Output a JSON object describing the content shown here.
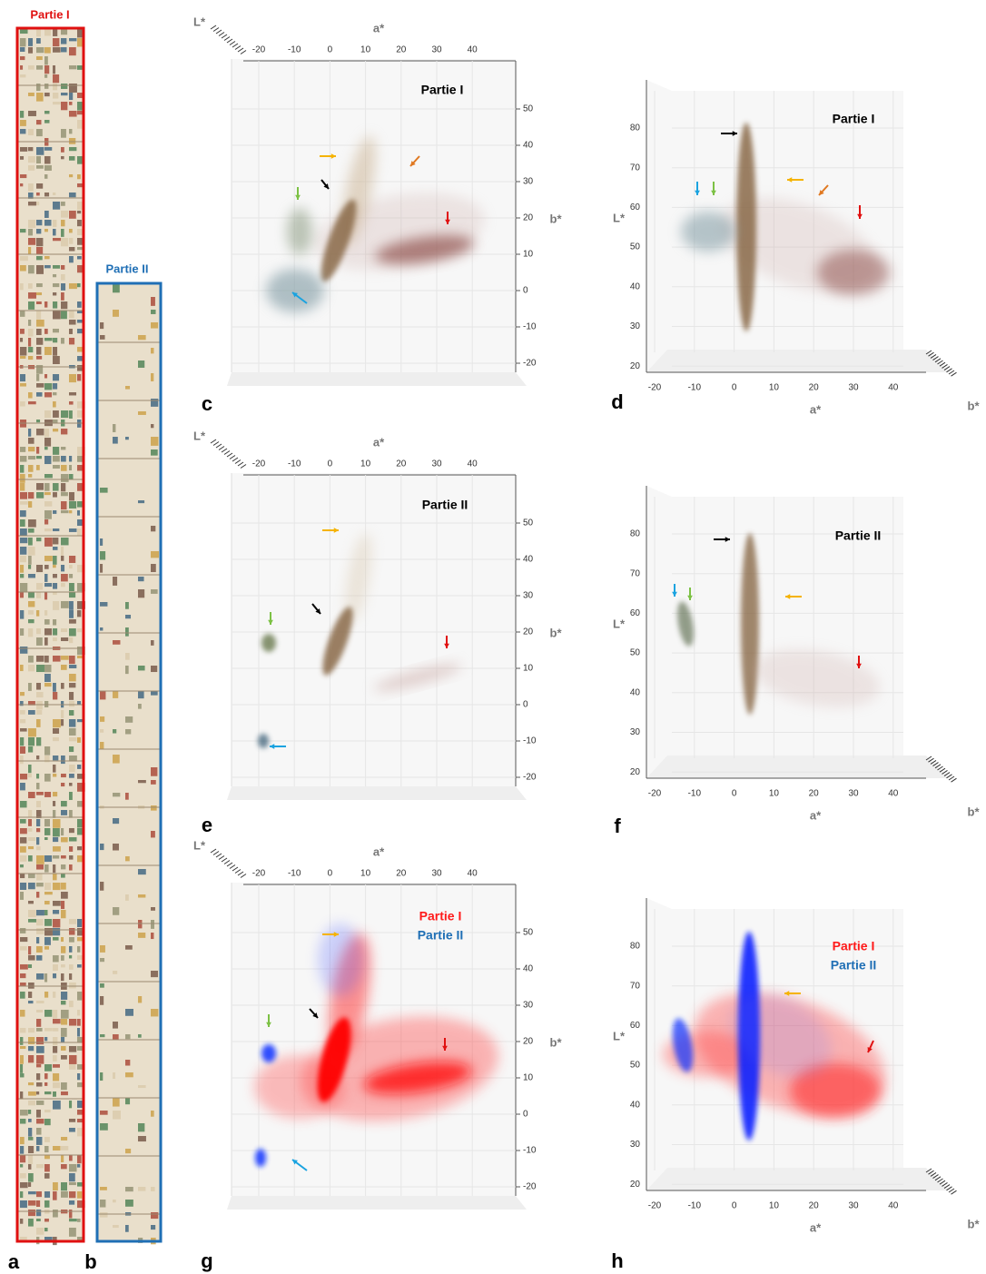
{
  "strips": [
    {
      "label": "a",
      "title": "Partie I",
      "color": "#e01010"
    },
    {
      "label": "b",
      "title": "Partie II",
      "color": "#1f6fb5"
    }
  ],
  "panels": [
    {
      "label": "c",
      "view": "ab",
      "titles": [
        {
          "text": "Partie I",
          "color": "#000000"
        }
      ],
      "l_label": "L*",
      "a_label": "a*",
      "b_label": "b*",
      "a_ticks": [
        -20,
        -10,
        0,
        10,
        20,
        30,
        40
      ],
      "b_ticks": [
        50,
        40,
        30,
        20,
        10,
        0,
        -10,
        -20
      ]
    },
    {
      "label": "d",
      "view": "la",
      "titles": [
        {
          "text": "Partie I",
          "color": "#000000"
        }
      ],
      "l_label": "L*",
      "a_label": "a*",
      "b_label": "b*",
      "l_ticks": [
        80,
        70,
        60,
        50,
        40,
        30,
        20
      ],
      "a_ticks": [
        -20,
        -10,
        0,
        10,
        20,
        30,
        40
      ]
    },
    {
      "label": "e",
      "view": "ab",
      "titles": [
        {
          "text": "Partie II",
          "color": "#000000"
        }
      ],
      "l_label": "L*",
      "a_label": "a*",
      "b_label": "b*",
      "a_ticks": [
        -20,
        -10,
        0,
        10,
        20,
        30,
        40
      ],
      "b_ticks": [
        50,
        40,
        30,
        20,
        10,
        0,
        -10,
        -20
      ]
    },
    {
      "label": "f",
      "view": "la",
      "titles": [
        {
          "text": "Partie II",
          "color": "#000000"
        }
      ],
      "l_label": "L*",
      "a_label": "a*",
      "b_label": "b*",
      "l_ticks": [
        80,
        70,
        60,
        50,
        40,
        30,
        20
      ],
      "a_ticks": [
        -20,
        -10,
        0,
        10,
        20,
        30,
        40
      ]
    },
    {
      "label": "g",
      "view": "ab",
      "titles": [
        {
          "text": "Partie I",
          "color": "#ff1a1a"
        },
        {
          "text": "Partie II",
          "color": "#1f6fb5"
        }
      ],
      "l_label": "L*",
      "a_label": "a*",
      "b_label": "b*",
      "a_ticks": [
        -20,
        -10,
        0,
        10,
        20,
        30,
        40
      ],
      "b_ticks": [
        50,
        40,
        30,
        20,
        10,
        0,
        -10,
        -20
      ]
    },
    {
      "label": "h",
      "view": "la",
      "titles": [
        {
          "text": "Partie I",
          "color": "#ff1a1a"
        },
        {
          "text": "Partie II",
          "color": "#1f6fb5"
        }
      ],
      "l_label": "L*",
      "a_label": "a*",
      "b_label": "b*",
      "l_ticks": [
        80,
        70,
        60,
        50,
        40,
        30,
        20
      ],
      "a_ticks": [
        -20,
        -10,
        0,
        10,
        20,
        30,
        40
      ]
    }
  ]
}
